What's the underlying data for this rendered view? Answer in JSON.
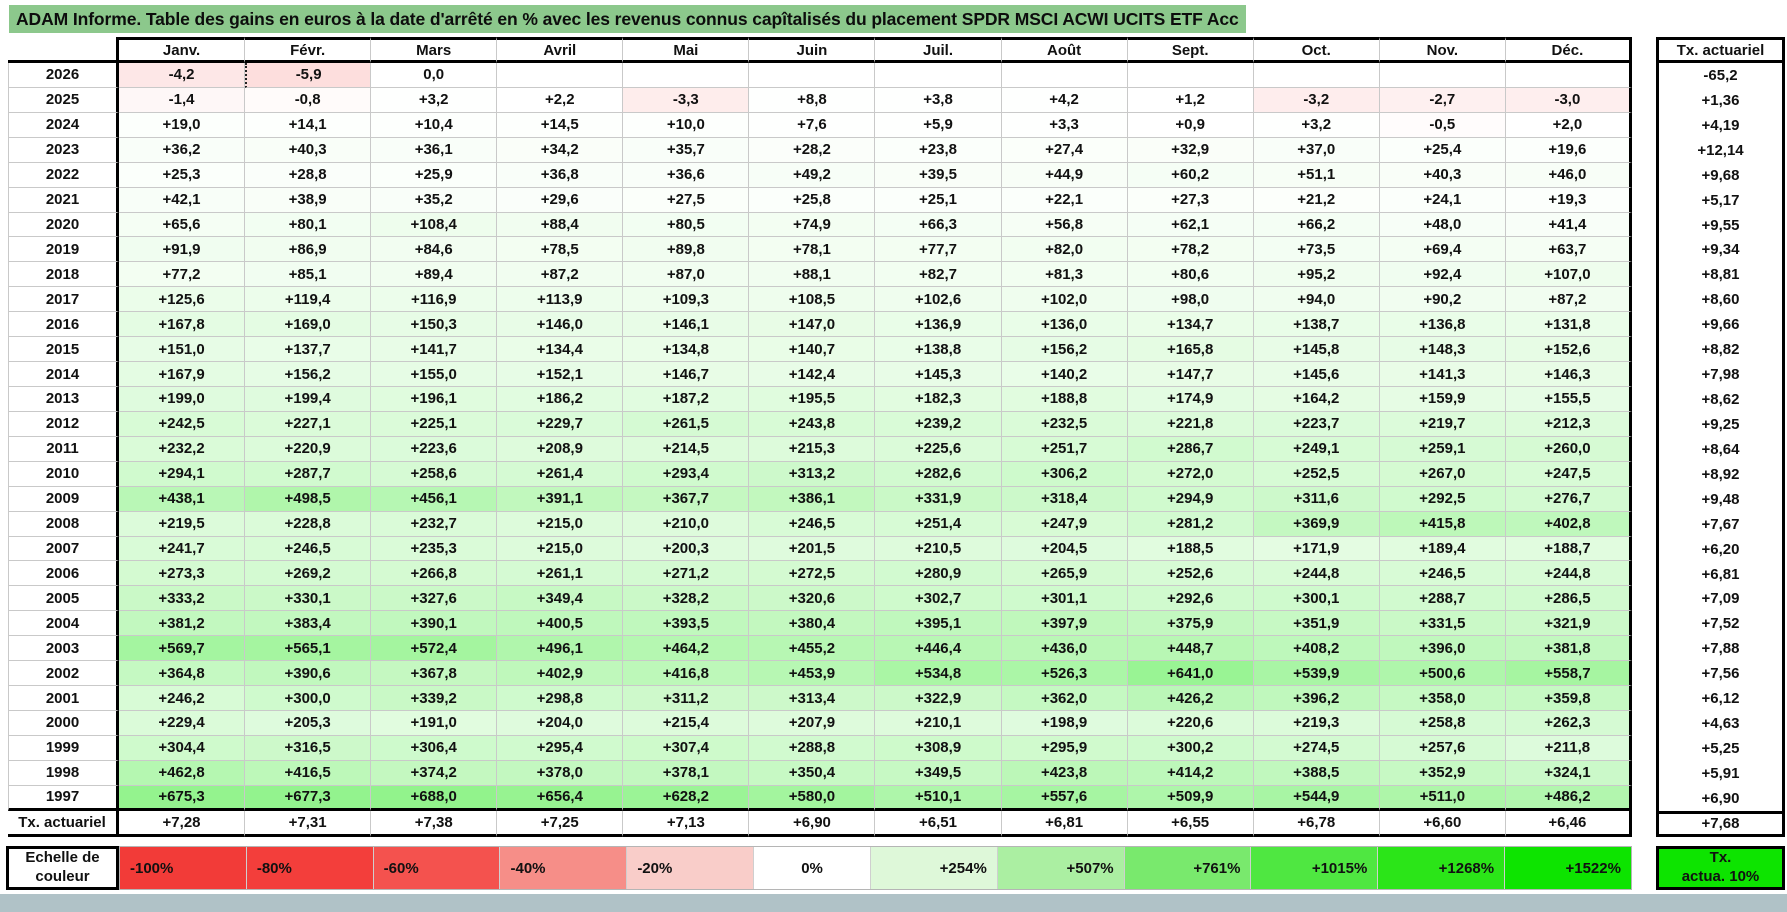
{
  "title": "ADAM Informe. Table des gains en euros à la date d'arrêté en % avec les revenus connus capîtalisés du placement SPDR MSCI ACWI UCITS ETF Acc",
  "chart_data": {
    "type": "table",
    "subtype": "heatmap",
    "columns": [
      "Janv.",
      "Févr.",
      "Mars",
      "Avril",
      "Mai",
      "Juin",
      "Juil.",
      "Août",
      "Sept.",
      "Oct.",
      "Nov.",
      "Déc."
    ],
    "right_column_header": "Tx. actuariel",
    "rows": [
      {
        "year": "2026",
        "values": [
          "-4,2",
          "-5,9",
          "0,0",
          "",
          "",
          "",
          "",
          "",
          "",
          "",
          "",
          ""
        ],
        "tx": "-65,2"
      },
      {
        "year": "2025",
        "values": [
          "-1,4",
          "-0,8",
          "+3,2",
          "+2,2",
          "-3,3",
          "+8,8",
          "+3,8",
          "+4,2",
          "+1,2",
          "-3,2",
          "-2,7",
          "-3,0"
        ],
        "tx": "+1,36"
      },
      {
        "year": "2024",
        "values": [
          "+19,0",
          "+14,1",
          "+10,4",
          "+14,5",
          "+10,0",
          "+7,6",
          "+5,9",
          "+3,3",
          "+0,9",
          "+3,2",
          "-0,5",
          "+2,0"
        ],
        "tx": "+4,19"
      },
      {
        "year": "2023",
        "values": [
          "+36,2",
          "+40,3",
          "+36,1",
          "+34,2",
          "+35,7",
          "+28,2",
          "+23,8",
          "+27,4",
          "+32,9",
          "+37,0",
          "+25,4",
          "+19,6"
        ],
        "tx": "+12,14"
      },
      {
        "year": "2022",
        "values": [
          "+25,3",
          "+28,8",
          "+25,9",
          "+36,8",
          "+36,6",
          "+49,2",
          "+39,5",
          "+44,9",
          "+60,2",
          "+51,1",
          "+40,3",
          "+46,0"
        ],
        "tx": "+9,68"
      },
      {
        "year": "2021",
        "values": [
          "+42,1",
          "+38,9",
          "+35,2",
          "+29,6",
          "+27,5",
          "+25,8",
          "+25,1",
          "+22,1",
          "+27,3",
          "+21,2",
          "+24,1",
          "+19,3"
        ],
        "tx": "+5,17"
      },
      {
        "year": "2020",
        "values": [
          "+65,6",
          "+80,1",
          "+108,4",
          "+88,4",
          "+80,5",
          "+74,9",
          "+66,3",
          "+56,8",
          "+62,1",
          "+66,2",
          "+48,0",
          "+41,4"
        ],
        "tx": "+9,55"
      },
      {
        "year": "2019",
        "values": [
          "+91,9",
          "+86,9",
          "+84,6",
          "+78,5",
          "+89,8",
          "+78,1",
          "+77,7",
          "+82,0",
          "+78,2",
          "+73,5",
          "+69,4",
          "+63,7"
        ],
        "tx": "+9,34"
      },
      {
        "year": "2018",
        "values": [
          "+77,2",
          "+85,1",
          "+89,4",
          "+87,2",
          "+87,0",
          "+88,1",
          "+82,7",
          "+81,3",
          "+80,6",
          "+95,2",
          "+92,4",
          "+107,0"
        ],
        "tx": "+8,81"
      },
      {
        "year": "2017",
        "values": [
          "+125,6",
          "+119,4",
          "+116,9",
          "+113,9",
          "+109,3",
          "+108,5",
          "+102,6",
          "+102,0",
          "+98,0",
          "+94,0",
          "+90,2",
          "+87,2"
        ],
        "tx": "+8,60"
      },
      {
        "year": "2016",
        "values": [
          "+167,8",
          "+169,0",
          "+150,3",
          "+146,0",
          "+146,1",
          "+147,0",
          "+136,9",
          "+136,0",
          "+134,7",
          "+138,7",
          "+136,8",
          "+131,8"
        ],
        "tx": "+9,66"
      },
      {
        "year": "2015",
        "values": [
          "+151,0",
          "+137,7",
          "+141,7",
          "+134,4",
          "+134,8",
          "+140,7",
          "+138,8",
          "+156,2",
          "+165,8",
          "+145,8",
          "+148,3",
          "+152,6"
        ],
        "tx": "+8,82"
      },
      {
        "year": "2014",
        "values": [
          "+167,9",
          "+156,2",
          "+155,0",
          "+152,1",
          "+146,7",
          "+142,4",
          "+145,3",
          "+140,2",
          "+147,7",
          "+145,6",
          "+141,3",
          "+146,3"
        ],
        "tx": "+7,98"
      },
      {
        "year": "2013",
        "values": [
          "+199,0",
          "+199,4",
          "+196,1",
          "+186,2",
          "+187,2",
          "+195,5",
          "+182,3",
          "+188,8",
          "+174,9",
          "+164,2",
          "+159,9",
          "+155,5"
        ],
        "tx": "+8,62"
      },
      {
        "year": "2012",
        "values": [
          "+242,5",
          "+227,1",
          "+225,1",
          "+229,7",
          "+261,5",
          "+243,8",
          "+239,2",
          "+232,5",
          "+221,8",
          "+223,7",
          "+219,7",
          "+212,3"
        ],
        "tx": "+9,25"
      },
      {
        "year": "2011",
        "values": [
          "+232,2",
          "+220,9",
          "+223,6",
          "+208,9",
          "+214,5",
          "+215,3",
          "+225,6",
          "+251,7",
          "+286,7",
          "+249,1",
          "+259,1",
          "+260,0"
        ],
        "tx": "+8,64"
      },
      {
        "year": "2010",
        "values": [
          "+294,1",
          "+287,7",
          "+258,6",
          "+261,4",
          "+293,4",
          "+313,2",
          "+282,6",
          "+306,2",
          "+272,0",
          "+252,5",
          "+267,0",
          "+247,5"
        ],
        "tx": "+8,92"
      },
      {
        "year": "2009",
        "values": [
          "+438,1",
          "+498,5",
          "+456,1",
          "+391,1",
          "+367,7",
          "+386,1",
          "+331,9",
          "+318,4",
          "+294,9",
          "+311,6",
          "+292,5",
          "+276,7"
        ],
        "tx": "+9,48"
      },
      {
        "year": "2008",
        "values": [
          "+219,5",
          "+228,8",
          "+232,7",
          "+215,0",
          "+210,0",
          "+246,5",
          "+251,4",
          "+247,9",
          "+281,2",
          "+369,9",
          "+415,8",
          "+402,8"
        ],
        "tx": "+7,67"
      },
      {
        "year": "2007",
        "values": [
          "+241,7",
          "+246,5",
          "+235,3",
          "+215,0",
          "+200,3",
          "+201,5",
          "+210,5",
          "+204,5",
          "+188,5",
          "+171,9",
          "+189,4",
          "+188,7"
        ],
        "tx": "+6,20"
      },
      {
        "year": "2006",
        "values": [
          "+273,3",
          "+269,2",
          "+266,8",
          "+261,1",
          "+271,2",
          "+272,5",
          "+280,9",
          "+265,9",
          "+252,6",
          "+244,8",
          "+246,5",
          "+244,8"
        ],
        "tx": "+6,81"
      },
      {
        "year": "2005",
        "values": [
          "+333,2",
          "+330,1",
          "+327,6",
          "+349,4",
          "+328,2",
          "+320,6",
          "+302,7",
          "+301,1",
          "+292,6",
          "+300,1",
          "+288,7",
          "+286,5"
        ],
        "tx": "+7,09"
      },
      {
        "year": "2004",
        "values": [
          "+381,2",
          "+383,4",
          "+390,1",
          "+400,5",
          "+393,5",
          "+380,4",
          "+395,1",
          "+397,9",
          "+375,9",
          "+351,9",
          "+331,5",
          "+321,9"
        ],
        "tx": "+7,52"
      },
      {
        "year": "2003",
        "values": [
          "+569,7",
          "+565,1",
          "+572,4",
          "+496,1",
          "+464,2",
          "+455,2",
          "+446,4",
          "+436,0",
          "+448,7",
          "+408,2",
          "+396,0",
          "+381,8"
        ],
        "tx": "+7,88"
      },
      {
        "year": "2002",
        "values": [
          "+364,8",
          "+390,6",
          "+367,8",
          "+402,9",
          "+416,8",
          "+453,9",
          "+534,8",
          "+526,3",
          "+641,0",
          "+539,9",
          "+500,6",
          "+558,7"
        ],
        "tx": "+7,56"
      },
      {
        "year": "2001",
        "values": [
          "+246,2",
          "+300,0",
          "+339,2",
          "+298,8",
          "+311,2",
          "+313,4",
          "+322,9",
          "+362,0",
          "+426,2",
          "+396,2",
          "+358,0",
          "+359,8"
        ],
        "tx": "+6,12"
      },
      {
        "year": "2000",
        "values": [
          "+229,4",
          "+205,3",
          "+191,0",
          "+204,0",
          "+215,4",
          "+207,9",
          "+210,1",
          "+198,9",
          "+220,6",
          "+219,3",
          "+258,8",
          "+262,3"
        ],
        "tx": "+4,63"
      },
      {
        "year": "1999",
        "values": [
          "+304,4",
          "+316,5",
          "+306,4",
          "+295,4",
          "+307,4",
          "+288,8",
          "+308,9",
          "+295,9",
          "+300,2",
          "+274,5",
          "+257,6",
          "+211,8"
        ],
        "tx": "+5,25"
      },
      {
        "year": "1998",
        "values": [
          "+462,8",
          "+416,5",
          "+374,2",
          "+378,0",
          "+378,1",
          "+350,4",
          "+349,5",
          "+423,8",
          "+414,2",
          "+388,5",
          "+352,9",
          "+324,1"
        ],
        "tx": "+5,91"
      },
      {
        "year": "1997",
        "values": [
          "+675,3",
          "+677,3",
          "+688,0",
          "+656,4",
          "+628,2",
          "+580,0",
          "+510,1",
          "+557,6",
          "+509,9",
          "+544,9",
          "+511,0",
          "+486,2"
        ],
        "tx": "+6,90"
      }
    ],
    "footer": {
      "label": "Tx. actuariel",
      "values": [
        "+7,28",
        "+7,31",
        "+7,38",
        "+7,25",
        "+7,13",
        "+6,90",
        "+6,51",
        "+6,81",
        "+6,55",
        "+6,78",
        "+6,60",
        "+6,46"
      ],
      "tx": "+7,68"
    },
    "dotted_cell": {
      "row": 0,
      "col": 1
    },
    "color_scale": {
      "negative_color": "#F23B38",
      "negative_full_at": -35,
      "positive_color": "#0DE400",
      "positive_full_at": 1522,
      "zero_color": "#FFFFFF"
    },
    "legend": {
      "label": "Echelle de couleur",
      "cells": [
        {
          "label": "-100%",
          "color": "#F23B38",
          "align": "al"
        },
        {
          "label": "-80%",
          "color": "#F33E3B",
          "align": "al"
        },
        {
          "label": "-60%",
          "color": "#F4524E",
          "align": "al"
        },
        {
          "label": "-40%",
          "color": "#F68E88",
          "align": "al"
        },
        {
          "label": "-20%",
          "color": "#F9CDC9",
          "align": "al"
        },
        {
          "label": "0%",
          "color": "#FFFFFF",
          "align": "ac"
        },
        {
          "label": "+254%",
          "color": "#DEF8D9",
          "align": "ar"
        },
        {
          "label": "+507%",
          "color": "#ABEFA2",
          "align": "ar"
        },
        {
          "label": "+761%",
          "color": "#79E96D",
          "align": "ar"
        },
        {
          "label": "+1015%",
          "color": "#4FE741",
          "align": "ar"
        },
        {
          "label": "+1268%",
          "color": "#2BE518",
          "align": "ar"
        },
        {
          "label": "+1522%",
          "color": "#0DE400",
          "align": "ar"
        }
      ],
      "tx_box": {
        "line1": "Tx.",
        "line2": "actua. 10%",
        "color": "#0DE400"
      }
    },
    "title_bar_color": "#8CC88C",
    "bottom_strip_color": "#b0c2c7"
  }
}
